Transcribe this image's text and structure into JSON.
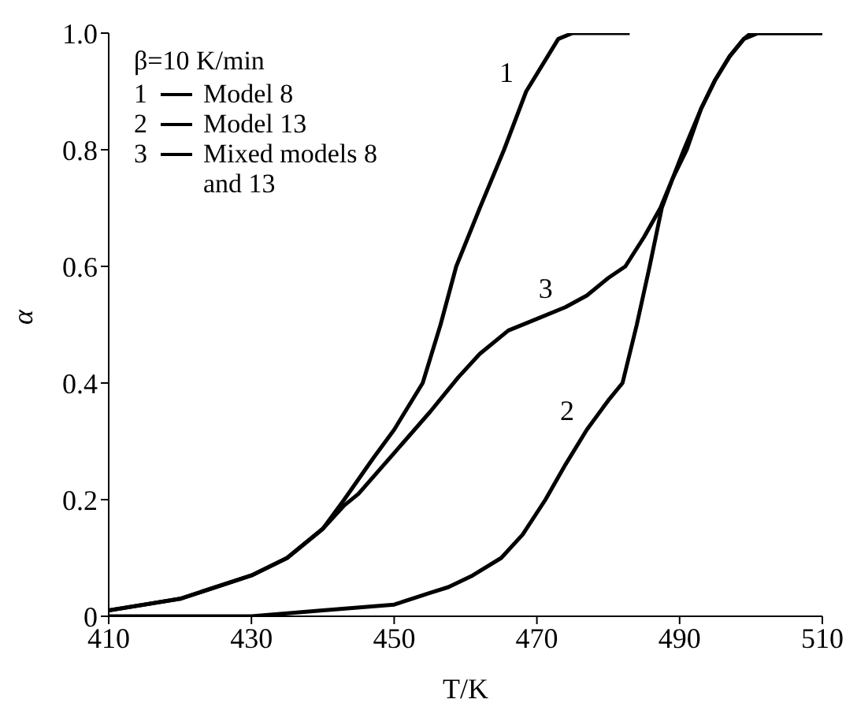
{
  "chart_data": {
    "type": "line",
    "xlabel": "T/K",
    "ylabel": "α",
    "legend_title": "β=10 K/min",
    "legend": "top left",
    "xlim": [
      410,
      510
    ],
    "xticks": [
      410,
      430,
      450,
      470,
      490,
      510
    ],
    "ylim": [
      0,
      1
    ],
    "yticks": [
      0,
      0.2,
      0.4,
      0.6,
      0.8,
      {
        "value": 1,
        "label": "1.0"
      }
    ],
    "grid": false,
    "marker": "none",
    "series": [
      {
        "name": "Model 8",
        "color": "#000000",
        "x": [
          410,
          420,
          430,
          435,
          440,
          443,
          447,
          450,
          454,
          456.5,
          458.7,
          462,
          465.4,
          468.5,
          471.5,
          473,
          475,
          483
        ],
        "values": [
          0.01,
          0.03,
          0.07,
          0.1,
          0.15,
          0.2,
          0.27,
          0.32,
          0.4,
          0.5,
          0.6,
          0.7,
          0.8,
          0.9,
          0.96,
          0.99,
          1.0,
          1.0
        ]
      },
      {
        "name": "Model 13",
        "color": "#000000",
        "x": [
          410,
          420,
          430,
          440,
          450,
          455,
          457.6,
          461,
          465,
          468,
          471.2,
          474,
          477,
          480,
          482,
          484,
          485.8,
          487.5,
          489,
          491,
          493,
          495,
          497,
          499,
          500,
          510
        ],
        "values": [
          0,
          0,
          0,
          0.01,
          0.02,
          0.04,
          0.05,
          0.07,
          0.1,
          0.14,
          0.2,
          0.26,
          0.32,
          0.37,
          0.4,
          0.5,
          0.6,
          0.7,
          0.75,
          0.8,
          0.87,
          0.92,
          0.96,
          0.99,
          1.0,
          1.0
        ]
      },
      {
        "name": "Mixed models 8 and 13",
        "color": "#000000",
        "x": [
          410,
          420,
          430,
          435,
          440,
          443,
          445,
          450,
          455,
          459,
          462,
          466,
          470,
          474,
          477,
          480,
          482.4,
          485,
          487.3,
          489,
          490.6,
          493,
          495,
          497,
          499,
          501,
          510
        ],
        "values": [
          0.01,
          0.03,
          0.07,
          0.1,
          0.15,
          0.19,
          0.21,
          0.28,
          0.35,
          0.41,
          0.45,
          0.49,
          0.51,
          0.53,
          0.55,
          0.58,
          0.6,
          0.65,
          0.7,
          0.75,
          0.8,
          0.87,
          0.92,
          0.96,
          0.99,
          1.0,
          1.0
        ]
      }
    ],
    "annotations": [
      {
        "text": "1",
        "x": 468.5,
        "y": 0.9
      },
      {
        "text": "2",
        "x": 477,
        "y": 0.32
      },
      {
        "text": "3",
        "x": 474,
        "y": 0.53
      }
    ]
  }
}
